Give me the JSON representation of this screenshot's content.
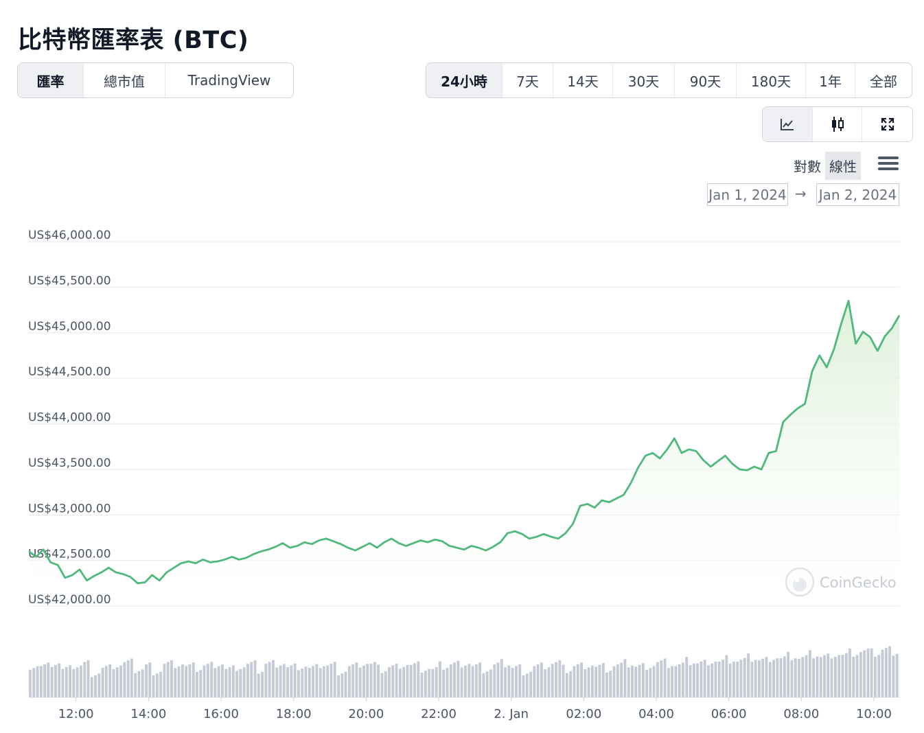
{
  "page_title": "比特幣匯率表 (BTC)",
  "tabs": [
    "匯率",
    "總市值",
    "TradingView"
  ],
  "active_tab": 0,
  "ranges": [
    "24小時",
    "7天",
    "14天",
    "30天",
    "90天",
    "180天",
    "1年",
    "全部"
  ],
  "active_range": 0,
  "chart_type_icons": [
    "line-chart-icon",
    "candlestick-icon",
    "fullscreen-icon"
  ],
  "active_chart_type": 0,
  "scale_options": [
    "對數",
    "線性"
  ],
  "active_scale": 1,
  "menu_icon": "hamburger-menu-icon",
  "date_from": "Jan 1, 2024",
  "date_arrow": "→",
  "date_to": "Jan 2, 2024",
  "watermark": "CoinGecko",
  "colors": {
    "line": "#4fb87c",
    "area_top": "#dcf0d8",
    "volume": "#c5cbd6",
    "grid": "#e8e8e8"
  },
  "chart_data": {
    "type": "area",
    "series_name": "",
    "x_tick_labels": [
      "12:00",
      "14:00",
      "16:00",
      "18:00",
      "20:00",
      "22:00",
      "2. Jan",
      "02:00",
      "04:00",
      "06:00",
      "08:00",
      "10:00"
    ],
    "y_tick_labels": [
      "US$42,000.00",
      "US$42,500.00",
      "US$43,000.00",
      "US$43,500.00",
      "US$44,000.00",
      "US$44,500.00",
      "US$45,000.00",
      "US$45,500.00",
      "US$46,000.00"
    ],
    "ylim": [
      42000,
      46000
    ],
    "xlim_hours": [
      10.7,
      34.7
    ],
    "grid": true,
    "price_points": [
      [
        10.7,
        42600
      ],
      [
        10.9,
        42540
      ],
      [
        11.1,
        42620
      ],
      [
        11.3,
        42480
      ],
      [
        11.5,
        42450
      ],
      [
        11.7,
        42310
      ],
      [
        11.9,
        42340
      ],
      [
        12.1,
        42400
      ],
      [
        12.3,
        42280
      ],
      [
        12.5,
        42330
      ],
      [
        12.7,
        42370
      ],
      [
        12.9,
        42420
      ],
      [
        13.1,
        42370
      ],
      [
        13.3,
        42350
      ],
      [
        13.5,
        42320
      ],
      [
        13.7,
        42250
      ],
      [
        13.9,
        42260
      ],
      [
        14.1,
        42340
      ],
      [
        14.3,
        42280
      ],
      [
        14.5,
        42370
      ],
      [
        14.7,
        42420
      ],
      [
        14.9,
        42470
      ],
      [
        15.1,
        42490
      ],
      [
        15.3,
        42470
      ],
      [
        15.5,
        42510
      ],
      [
        15.7,
        42480
      ],
      [
        15.9,
        42490
      ],
      [
        16.1,
        42510
      ],
      [
        16.3,
        42540
      ],
      [
        16.5,
        42510
      ],
      [
        16.7,
        42530
      ],
      [
        16.9,
        42570
      ],
      [
        17.1,
        42600
      ],
      [
        17.3,
        42620
      ],
      [
        17.5,
        42650
      ],
      [
        17.7,
        42690
      ],
      [
        17.9,
        42640
      ],
      [
        18.1,
        42660
      ],
      [
        18.3,
        42700
      ],
      [
        18.5,
        42680
      ],
      [
        18.7,
        42720
      ],
      [
        18.9,
        42740
      ],
      [
        19.1,
        42710
      ],
      [
        19.3,
        42680
      ],
      [
        19.5,
        42640
      ],
      [
        19.7,
        42610
      ],
      [
        19.9,
        42650
      ],
      [
        20.1,
        42690
      ],
      [
        20.3,
        42640
      ],
      [
        20.5,
        42700
      ],
      [
        20.7,
        42740
      ],
      [
        20.9,
        42690
      ],
      [
        21.1,
        42660
      ],
      [
        21.3,
        42690
      ],
      [
        21.5,
        42720
      ],
      [
        21.7,
        42700
      ],
      [
        21.9,
        42730
      ],
      [
        22.1,
        42710
      ],
      [
        22.3,
        42660
      ],
      [
        22.5,
        42640
      ],
      [
        22.7,
        42620
      ],
      [
        22.9,
        42660
      ],
      [
        23.1,
        42640
      ],
      [
        23.3,
        42610
      ],
      [
        23.5,
        42650
      ],
      [
        23.7,
        42700
      ],
      [
        23.9,
        42800
      ],
      [
        24.1,
        42820
      ],
      [
        24.3,
        42790
      ],
      [
        24.5,
        42740
      ],
      [
        24.7,
        42760
      ],
      [
        24.9,
        42790
      ],
      [
        25.1,
        42760
      ],
      [
        25.3,
        42740
      ],
      [
        25.5,
        42800
      ],
      [
        25.7,
        42900
      ],
      [
        25.9,
        43100
      ],
      [
        26.1,
        43120
      ],
      [
        26.3,
        43080
      ],
      [
        26.5,
        43160
      ],
      [
        26.7,
        43140
      ],
      [
        26.9,
        43180
      ],
      [
        27.1,
        43220
      ],
      [
        27.3,
        43350
      ],
      [
        27.5,
        43520
      ],
      [
        27.7,
        43650
      ],
      [
        27.9,
        43680
      ],
      [
        28.1,
        43620
      ],
      [
        28.3,
        43720
      ],
      [
        28.5,
        43840
      ],
      [
        28.7,
        43680
      ],
      [
        28.9,
        43720
      ],
      [
        29.1,
        43700
      ],
      [
        29.3,
        43600
      ],
      [
        29.5,
        43530
      ],
      [
        29.7,
        43590
      ],
      [
        29.9,
        43650
      ],
      [
        30.1,
        43560
      ],
      [
        30.3,
        43500
      ],
      [
        30.5,
        43490
      ],
      [
        30.7,
        43530
      ],
      [
        30.9,
        43500
      ],
      [
        31.1,
        43680
      ],
      [
        31.3,
        43700
      ],
      [
        31.5,
        44020
      ],
      [
        31.7,
        44100
      ],
      [
        31.9,
        44170
      ],
      [
        32.1,
        44220
      ],
      [
        32.3,
        44580
      ],
      [
        32.5,
        44750
      ],
      [
        32.7,
        44620
      ],
      [
        32.9,
        44820
      ],
      [
        33.1,
        45100
      ],
      [
        33.3,
        45350
      ],
      [
        33.5,
        44880
      ],
      [
        33.7,
        45010
      ],
      [
        33.9,
        44950
      ],
      [
        34.1,
        44800
      ],
      [
        34.3,
        44960
      ],
      [
        34.5,
        45050
      ],
      [
        34.7,
        45190
      ]
    ],
    "volume_relative": [
      0.58,
      0.55,
      0.62,
      0.49,
      0.57,
      0.6,
      0.45,
      0.52,
      0.58,
      0.61,
      0.5,
      0.56,
      0.48,
      0.59,
      0.6,
      0.54,
      0.52,
      0.57,
      0.61,
      0.5,
      0.55,
      0.58,
      0.49,
      0.6,
      0.62,
      0.53,
      0.56,
      0.51,
      0.59,
      0.57,
      0.48,
      0.55,
      0.61,
      0.58,
      0.5,
      0.54,
      0.6,
      0.57,
      0.52,
      0.49,
      0.56,
      0.59,
      0.62,
      0.55,
      0.51,
      0.57,
      0.6,
      0.53,
      0.48,
      0.55,
      0.58,
      0.61,
      0.5,
      0.56,
      0.59,
      0.54,
      0.52,
      0.57,
      0.6,
      0.55,
      0.58,
      0.62,
      0.6,
      0.57,
      0.64,
      0.61,
      0.66,
      0.63,
      0.68,
      0.65,
      0.7,
      0.66,
      0.72,
      0.69,
      0.74,
      0.7,
      0.76,
      0.72,
      0.78,
      0.75,
      0.8,
      0.82,
      0.79,
      0.85,
      0.83
    ]
  }
}
